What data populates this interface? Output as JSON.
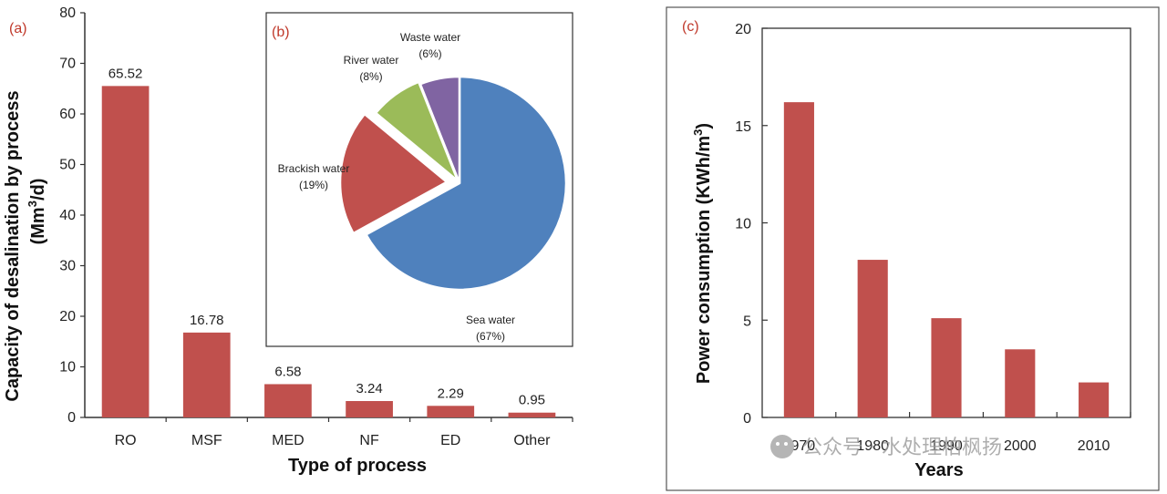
{
  "chart_data": [
    {
      "panel": "(a)",
      "type": "bar",
      "categories": [
        "RO",
        "MSF",
        "MED",
        "NF",
        "ED",
        "Other"
      ],
      "values": [
        65.52,
        16.78,
        6.58,
        3.24,
        2.29,
        0.95
      ],
      "data_labels": [
        "65.52",
        "16.78",
        "6.58",
        "3.24",
        "2.29",
        "0.95"
      ],
      "xlabel": "Type of process",
      "ylabel_line1": "Capacity of desalination by process",
      "ylabel_line2_pre": "(Mm",
      "ylabel_line2_sup": "3",
      "ylabel_line2_post": "/d)",
      "ylim": [
        0,
        80
      ],
      "yticks": [
        0,
        10,
        20,
        30,
        40,
        50,
        60,
        70,
        80
      ],
      "color": "#c0504d",
      "grid": false
    },
    {
      "panel": "(b)",
      "type": "pie",
      "slices": [
        {
          "name": "Sea water",
          "value": 67,
          "pct_label": "(67%)",
          "color": "#4f81bd"
        },
        {
          "name": "Brackish water",
          "value": 19,
          "pct_label": "(19%)",
          "color": "#c0504d"
        },
        {
          "name": "River water",
          "value": 8,
          "pct_label": "(8%)",
          "color": "#9bbb59"
        },
        {
          "name": "Waste water",
          "value": 6,
          "pct_label": "(6%)",
          "color": "#8064a2"
        }
      ]
    },
    {
      "panel": "(c)",
      "type": "bar",
      "categories": [
        "1970",
        "1980",
        "1990",
        "2000",
        "2010"
      ],
      "values": [
        16.2,
        8.1,
        5.1,
        3.5,
        1.8
      ],
      "xlabel": "Years",
      "ylabel_pre": "Power consumption (KWh/m",
      "ylabel_sup": "3",
      "ylabel_post": ")",
      "ylim": [
        0,
        20
      ],
      "yticks": [
        0,
        5,
        10,
        15,
        20
      ],
      "color": "#c0504d",
      "grid": false
    }
  ],
  "watermark": "公众号 · 水处理柏枫扬",
  "colors": {
    "panel_label": "#c0392b",
    "axis": "#333333"
  }
}
